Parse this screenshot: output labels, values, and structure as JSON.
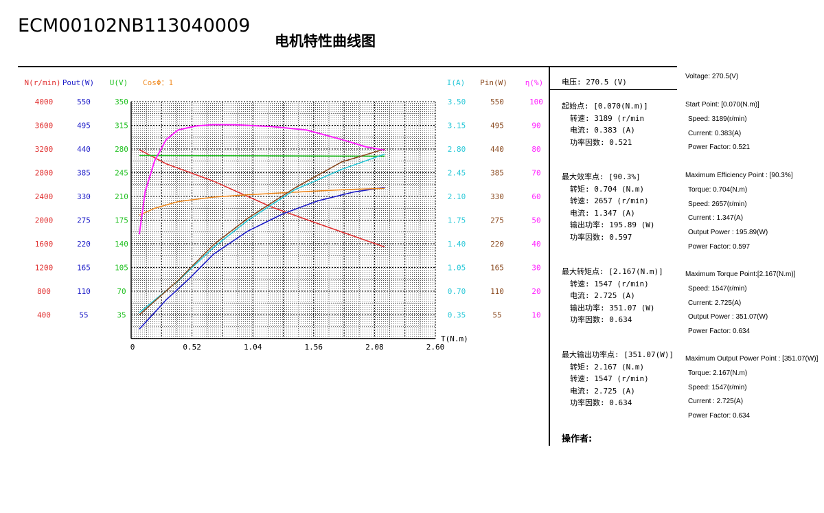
{
  "model": "ECM00102NB113040009",
  "title": "电机特性曲线图",
  "colors": {
    "speed": "#e03030",
    "pout": "#1d1dc8",
    "voltage": "#22c022",
    "cos": "#f08a20",
    "current": "#28c8d8",
    "pin": "#8a4a20",
    "eff": "#ff20ff",
    "grid": "#000000"
  },
  "axes": {
    "headers": {
      "speed": "N(r/min)",
      "pout": "Pout(W)",
      "voltage": "U(V)",
      "cos": "CosΦ：1",
      "current": "I(A)",
      "pin": "Pin(W)",
      "eff": "η(%)"
    },
    "speed_ticks": [
      "4000",
      "3600",
      "3200",
      "2800",
      "2400",
      "2000",
      "1600",
      "1200",
      "800",
      "400"
    ],
    "pout_ticks": [
      "550",
      "495",
      "440",
      "385",
      "330",
      "275",
      "220",
      "165",
      "110",
      "55"
    ],
    "voltage_ticks": [
      "350",
      "315",
      "280",
      "245",
      "210",
      "175",
      "140",
      "105",
      "70",
      "35"
    ],
    "current_ticks": [
      "3.50",
      "3.15",
      "2.80",
      "2.45",
      "2.10",
      "1.75",
      "1.40",
      "1.05",
      "0.70",
      "0.35"
    ],
    "pin_ticks": [
      "550",
      "495",
      "440",
      "385",
      "330",
      "275",
      "220",
      "165",
      "110",
      "55"
    ],
    "eff_ticks": [
      "100",
      "90",
      "80",
      "70",
      "60",
      "50",
      "40",
      "30",
      "20",
      "10"
    ],
    "x_ticks": [
      "0",
      "0.52",
      "1.04",
      "1.56",
      "2.08",
      "2.60"
    ],
    "x_label": "T(N.m)"
  },
  "chart_data": {
    "type": "line",
    "x_label": "T(N.m)",
    "xlim": [
      0,
      2.6
    ],
    "series": [
      {
        "key": "speed",
        "axis": "N(r/min)",
        "ylim": [
          0,
          4000
        ],
        "x": [
          0.07,
          0.3,
          0.704,
          1.2,
          1.6,
          2.0,
          2.167
        ],
        "y": [
          3189,
          2950,
          2657,
          2220,
          1940,
          1660,
          1547
        ]
      },
      {
        "key": "pout",
        "axis": "Pout(W)",
        "ylim": [
          0,
          550
        ],
        "x": [
          0.07,
          0.3,
          0.5,
          0.704,
          1.0,
          1.3,
          1.6,
          1.9,
          2.167
        ],
        "y": [
          22,
          90,
          140,
          195.89,
          250,
          290,
          320,
          340,
          351.07
        ]
      },
      {
        "key": "voltage",
        "axis": "U(V)",
        "ylim": [
          0,
          350
        ],
        "x": [
          0.07,
          0.6,
          1.2,
          1.8,
          2.167
        ],
        "y": [
          270.5,
          270.2,
          270,
          269.6,
          269.4
        ]
      },
      {
        "key": "cos",
        "axis": "CosΦ：1",
        "ylim": [
          0,
          1
        ],
        "x": [
          0.07,
          0.2,
          0.4,
          0.704,
          1.0,
          1.4,
          1.8,
          2.167
        ],
        "y": [
          0.521,
          0.55,
          0.578,
          0.597,
          0.607,
          0.618,
          0.628,
          0.634
        ]
      },
      {
        "key": "current",
        "axis": "I(A)",
        "ylim": [
          0,
          3.5
        ],
        "x": [
          0.07,
          0.4,
          0.704,
          1.0,
          1.4,
          1.8,
          2.167
        ],
        "y": [
          0.383,
          0.85,
          1.347,
          1.75,
          2.2,
          2.5,
          2.725
        ]
      },
      {
        "key": "pin",
        "axis": "Pin(W)",
        "ylim": [
          0,
          550
        ],
        "x": [
          0.07,
          0.4,
          0.704,
          1.0,
          1.4,
          1.8,
          2.167
        ],
        "y": [
          55,
          135,
          218,
          280,
          350,
          410,
          440
        ]
      },
      {
        "key": "eff",
        "axis": "η(%)",
        "ylim": [
          0,
          100
        ],
        "x": [
          0.07,
          0.12,
          0.2,
          0.3,
          0.4,
          0.55,
          0.704,
          0.9,
          1.2,
          1.5,
          1.8,
          2.0,
          2.167
        ],
        "y": [
          44,
          62,
          75,
          84,
          88,
          89.7,
          90.3,
          90.2,
          89.5,
          88,
          84,
          81,
          79.5
        ]
      }
    ]
  },
  "panel_cn": {
    "voltage": "电压:  270.5 (V)",
    "start": {
      "head": "起始点: [0.070(N.m)]",
      "lines": [
        "转速: 3189 (r/min",
        "电流: 0.383 (A)",
        "功率因数: 0.521"
      ]
    },
    "max_eff": {
      "head": "最大效率点: [90.3%]",
      "lines": [
        "转矩: 0.704 (N.m)",
        "转速: 2657 (r/min)",
        "电流: 1.347 (A)",
        "输出功率: 195.89 (W)",
        "功率因数: 0.597"
      ]
    },
    "max_torque": {
      "head": "最大转矩点: [2.167(N.m)]",
      "lines": [
        "转速: 1547 (r/min)",
        "电流: 2.725 (A)",
        "输出功率: 351.07 (W)",
        "功率因数: 0.634"
      ]
    },
    "max_power": {
      "head": "最大输出功率点: [351.07(W)]",
      "lines": [
        "转矩: 2.167 (N.m)",
        "转速: 1547 (r/min)",
        "电流: 2.725 (A)",
        "功率因数: 0.634"
      ]
    },
    "operator": "操作者:"
  },
  "panel_en": {
    "voltage": "Voltage: 270.5(V)",
    "start": {
      "head": "Start Point: [0.070(N.m)]",
      "lines": [
        "Speed: 3189(r/min)",
        "Current: 0.383(A)",
        "Power Factor: 0.521"
      ]
    },
    "max_eff": {
      "head": "Maximum Efficiency Point : [90.3%]",
      "lines": [
        "Torque: 0.704(N.m)",
        "Speed: 2657(r/min)",
        "Current : 1.347(A)",
        "Output Power : 195.89(W)",
        "Power Factor: 0.597"
      ]
    },
    "max_torque": {
      "head": "Maximum Torque Point:[2.167(N.m)]",
      "lines": [
        "Speed: 1547(r/min)",
        "Current: 2.725(A)",
        "Output Power : 351.07(W)",
        "Power Factor: 0.634"
      ]
    },
    "max_power": {
      "head": "Maximum Output Power Point : [351.07(W)]",
      "lines": [
        "Torque: 2.167(N.m)",
        "Speed: 1547(r/min)",
        "Current : 2.725(A)",
        "Power Factor: 0.634"
      ]
    }
  }
}
